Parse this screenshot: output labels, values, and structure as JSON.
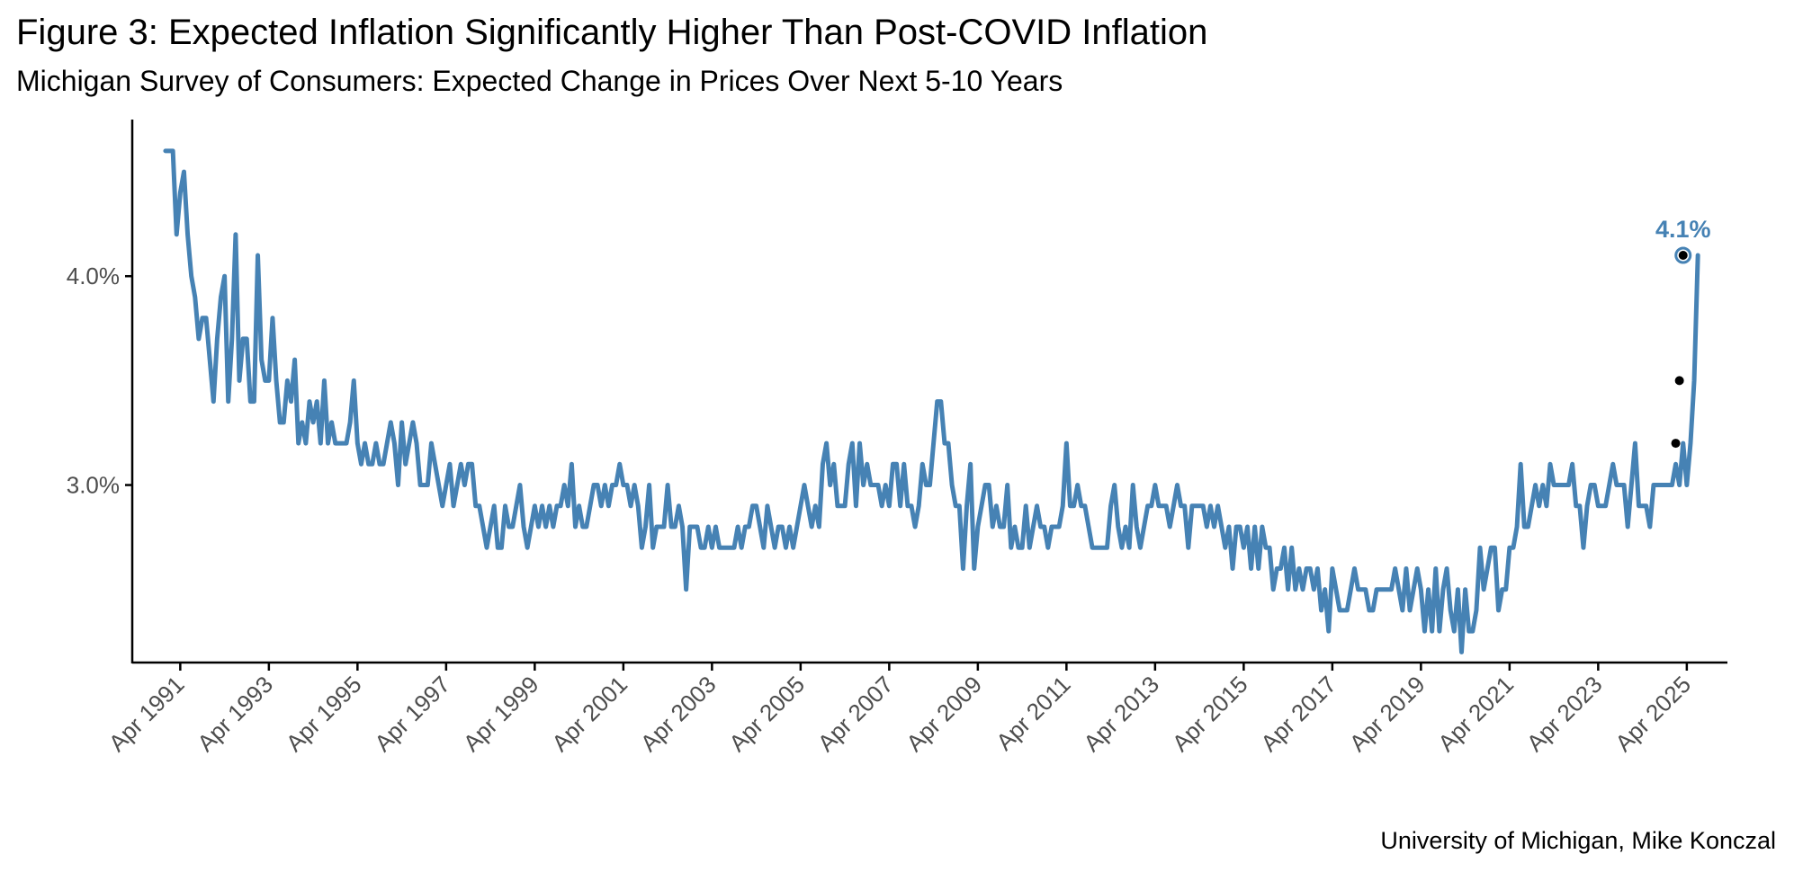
{
  "title": "Figure 3: Expected Inflation Significantly Higher Than Post-COVID Inflation",
  "subtitle": "Michigan Survey of Consumers: Expected Change in Prices Over Next 5-10 Years",
  "caption": "University of Michigan, Mike Konczal",
  "chart_data": {
    "type": "line",
    "xlabel": "",
    "ylabel": "",
    "x_start": "1990-12",
    "x_frequency": "monthly",
    "xlim": [
      "1990-03",
      "2026-03"
    ],
    "ylim": [
      2.15,
      4.75
    ],
    "y_ticks": [
      3.0,
      4.0
    ],
    "y_tick_labels": [
      "3.0%",
      "4.0%"
    ],
    "x_ticks": [
      "1991-04",
      "1993-04",
      "1995-04",
      "1997-04",
      "1999-04",
      "2001-04",
      "2003-04",
      "2005-04",
      "2007-04",
      "2009-04",
      "2011-04",
      "2013-04",
      "2015-04",
      "2017-04",
      "2019-04",
      "2021-04",
      "2023-04",
      "2025-04"
    ],
    "x_tick_labels": [
      "Apr 1991",
      "Apr 1993",
      "Apr 1995",
      "Apr 1997",
      "Apr 1999",
      "Apr 2001",
      "Apr 2003",
      "Apr 2005",
      "Apr 2007",
      "Apr 2009",
      "Apr 2011",
      "Apr 2013",
      "Apr 2015",
      "Apr 2017",
      "Apr 2019",
      "Apr 2021",
      "Apr 2023",
      "Apr 2025"
    ],
    "grid": false,
    "legend": "none",
    "line_color": "#4682B4",
    "point_color": "#000000",
    "end_label": "4.1%",
    "highlight_points": [
      {
        "x": "2025-01",
        "y": 3.2
      },
      {
        "x": "2025-02",
        "y": 3.5
      },
      {
        "x": "2025-03",
        "y": 4.1
      }
    ],
    "values": [
      4.6,
      4.6,
      4.6,
      4.2,
      4.4,
      4.5,
      4.2,
      4.0,
      3.9,
      3.7,
      3.8,
      3.8,
      3.6,
      3.4,
      3.7,
      3.9,
      4.0,
      3.4,
      3.7,
      4.2,
      3.5,
      3.7,
      3.7,
      3.4,
      3.4,
      4.1,
      3.6,
      3.5,
      3.5,
      3.8,
      3.5,
      3.3,
      3.3,
      3.5,
      3.4,
      3.6,
      3.2,
      3.3,
      3.2,
      3.4,
      3.3,
      3.4,
      3.2,
      3.5,
      3.2,
      3.3,
      3.2,
      3.2,
      3.2,
      3.2,
      3.3,
      3.5,
      3.2,
      3.1,
      3.2,
      3.1,
      3.1,
      3.2,
      3.1,
      3.1,
      3.2,
      3.3,
      3.2,
      3.0,
      3.3,
      3.1,
      3.2,
      3.3,
      3.2,
      3.0,
      3.0,
      3.0,
      3.2,
      3.1,
      3.0,
      2.9,
      3.0,
      3.1,
      2.9,
      3.0,
      3.1,
      3.0,
      3.1,
      3.1,
      2.9,
      2.9,
      2.8,
      2.7,
      2.8,
      2.9,
      2.7,
      2.7,
      2.9,
      2.8,
      2.8,
      2.9,
      3.0,
      2.8,
      2.7,
      2.8,
      2.9,
      2.8,
      2.9,
      2.8,
      2.9,
      2.8,
      2.9,
      2.9,
      3.0,
      2.9,
      3.1,
      2.8,
      2.9,
      2.8,
      2.8,
      2.9,
      3.0,
      3.0,
      2.9,
      3.0,
      2.9,
      3.0,
      3.0,
      3.1,
      3.0,
      3.0,
      2.9,
      3.0,
      2.9,
      2.7,
      2.8,
      3.0,
      2.7,
      2.8,
      2.8,
      2.8,
      3.0,
      2.8,
      2.8,
      2.9,
      2.8,
      2.5,
      2.8,
      2.8,
      2.8,
      2.7,
      2.7,
      2.8,
      2.7,
      2.8,
      2.7,
      2.7,
      2.7,
      2.7,
      2.7,
      2.8,
      2.7,
      2.8,
      2.8,
      2.9,
      2.9,
      2.8,
      2.7,
      2.9,
      2.8,
      2.7,
      2.8,
      2.8,
      2.7,
      2.8,
      2.7,
      2.8,
      2.9,
      3.0,
      2.9,
      2.8,
      2.9,
      2.8,
      3.1,
      3.2,
      3.0,
      3.1,
      2.9,
      2.9,
      2.9,
      3.1,
      3.2,
      2.9,
      3.2,
      3.0,
      3.1,
      3.0,
      3.0,
      3.0,
      2.9,
      3.0,
      2.9,
      3.1,
      3.1,
      2.9,
      3.1,
      2.9,
      2.9,
      2.8,
      2.9,
      3.1,
      3.0,
      3.0,
      3.2,
      3.4,
      3.4,
      3.2,
      3.2,
      3.0,
      2.9,
      2.9,
      2.6,
      2.9,
      3.1,
      2.6,
      2.8,
      2.9,
      3.0,
      3.0,
      2.8,
      2.9,
      2.8,
      2.8,
      3.0,
      2.7,
      2.8,
      2.7,
      2.7,
      2.9,
      2.7,
      2.8,
      2.9,
      2.8,
      2.8,
      2.7,
      2.8,
      2.8,
      2.8,
      2.9,
      3.2,
      2.9,
      2.9,
      3.0,
      2.9,
      2.9,
      2.8,
      2.7,
      2.7,
      2.7,
      2.7,
      2.7,
      2.9,
      3.0,
      2.8,
      2.7,
      2.8,
      2.7,
      3.0,
      2.8,
      2.7,
      2.8,
      2.9,
      2.9,
      3.0,
      2.9,
      2.9,
      2.9,
      2.8,
      2.9,
      3.0,
      2.9,
      2.9,
      2.7,
      2.9,
      2.9,
      2.9,
      2.9,
      2.8,
      2.9,
      2.8,
      2.9,
      2.8,
      2.7,
      2.8,
      2.6,
      2.8,
      2.8,
      2.7,
      2.8,
      2.6,
      2.8,
      2.6,
      2.8,
      2.7,
      2.7,
      2.5,
      2.6,
      2.6,
      2.7,
      2.5,
      2.7,
      2.5,
      2.6,
      2.5,
      2.6,
      2.6,
      2.5,
      2.6,
      2.4,
      2.5,
      2.3,
      2.6,
      2.5,
      2.4,
      2.4,
      2.4,
      2.5,
      2.6,
      2.5,
      2.5,
      2.5,
      2.4,
      2.4,
      2.5,
      2.5,
      2.5,
      2.5,
      2.5,
      2.6,
      2.5,
      2.4,
      2.6,
      2.4,
      2.5,
      2.6,
      2.5,
      2.3,
      2.5,
      2.3,
      2.6,
      2.3,
      2.5,
      2.6,
      2.4,
      2.3,
      2.5,
      2.2,
      2.5,
      2.3,
      2.3,
      2.4,
      2.7,
      2.5,
      2.6,
      2.7,
      2.7,
      2.4,
      2.5,
      2.5,
      2.7,
      2.7,
      2.8,
      3.1,
      2.8,
      2.8,
      2.9,
      3.0,
      2.9,
      3.0,
      2.9,
      3.1,
      3.0,
      3.0,
      3.0,
      3.0,
      3.0,
      3.1,
      2.9,
      2.9,
      2.7,
      2.9,
      3.0,
      3.0,
      2.9,
      2.9,
      2.9,
      3.0,
      3.1,
      3.0,
      3.0,
      3.0,
      2.8,
      3.0,
      3.2,
      2.9,
      2.9,
      2.9,
      2.8,
      3.0,
      3.0,
      3.0,
      3.0,
      3.0,
      3.0,
      3.1,
      3.0,
      3.2,
      3.0,
      3.2,
      3.5,
      4.1
    ]
  }
}
